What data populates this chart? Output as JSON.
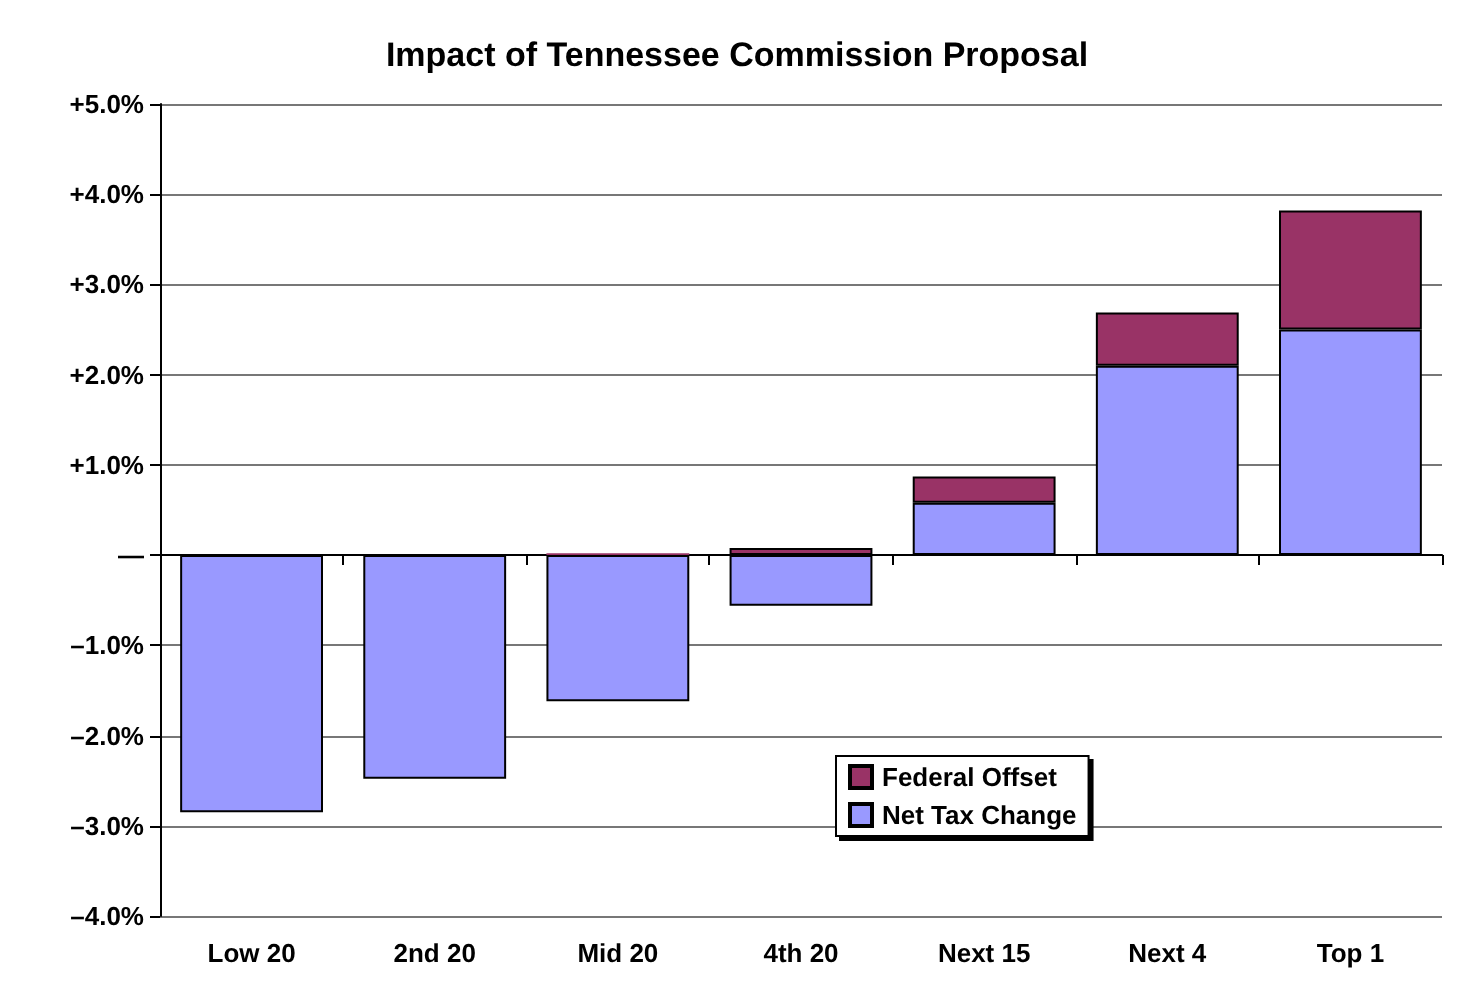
{
  "chart_data": {
    "type": "bar",
    "title": "Impact of Tennessee Commission Proposal",
    "categories": [
      "Low 20",
      "2nd 20",
      "Mid 20",
      "4th 20",
      "Next 15",
      "Next 4",
      "Top 1"
    ],
    "stacked": true,
    "series": [
      {
        "name": "Net Tax Change",
        "color": "#9999ff",
        "values": [
          -2.85,
          -2.48,
          -1.62,
          -0.56,
          0.58,
          2.1,
          2.5
        ]
      },
      {
        "name": "Federal Offset",
        "color": "#993366",
        "values": [
          0,
          0,
          0.02,
          0.08,
          0.29,
          0.59,
          1.32
        ]
      }
    ],
    "ylim": [
      -4,
      5
    ],
    "yticks": [
      {
        "value": -4,
        "label": "–4.0%"
      },
      {
        "value": -3,
        "label": "–3.0%"
      },
      {
        "value": -2,
        "label": "–2.0%"
      },
      {
        "value": -1,
        "label": "–1.0%"
      },
      {
        "value": 0,
        "label": "—"
      },
      {
        "value": 1,
        "label": "+1.0%"
      },
      {
        "value": 2,
        "label": "+2.0%"
      },
      {
        "value": 3,
        "label": "+3.0%"
      },
      {
        "value": 4,
        "label": "+4.0%"
      },
      {
        "value": 5,
        "label": "+5.0%"
      }
    ],
    "grid": "y",
    "legend": "bottom"
  }
}
